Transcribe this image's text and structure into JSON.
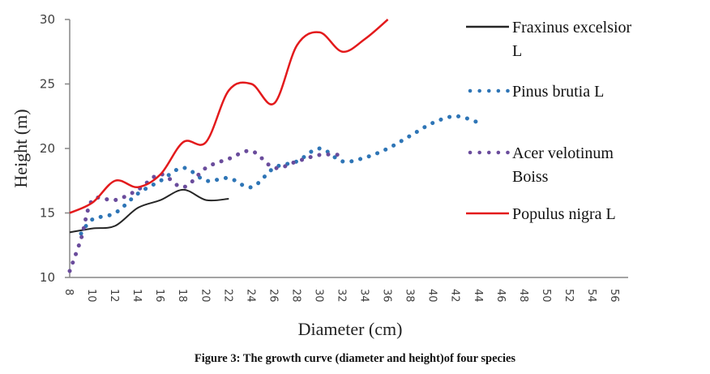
{
  "chart_data": {
    "type": "line",
    "title": "",
    "xlabel": "Diameter (cm)",
    "ylabel": "Height (m)",
    "xlim": [
      8,
      56
    ],
    "ylim": [
      10,
      30
    ],
    "x_ticks": [
      "8",
      "10",
      "12",
      "14",
      "16",
      "18",
      "20",
      "22",
      "24",
      "26",
      "28",
      "30",
      "32",
      "34",
      "36",
      "38",
      "40",
      "42",
      "44",
      "46",
      "48",
      "50",
      "52",
      "54",
      "56"
    ],
    "y_ticks": [
      "10",
      "15",
      "20",
      "25",
      "30"
    ],
    "grid": false,
    "legend_position": "right",
    "series": [
      {
        "name": "Fraxinus excelsior L",
        "legend_lines": [
          "Fraxinus excelsior",
          "L"
        ],
        "style": "solid",
        "color": "#262626",
        "points": [
          [
            8,
            13.5
          ],
          [
            10,
            13.8
          ],
          [
            12,
            14.0
          ],
          [
            14,
            15.4
          ],
          [
            16,
            16.0
          ],
          [
            18,
            16.8
          ],
          [
            20,
            16.0
          ],
          [
            22,
            16.1
          ]
        ]
      },
      {
        "name": "Pinus brutia L",
        "legend_lines": [
          "Pinus brutia L"
        ],
        "style": "dotted",
        "color": "#2e75b6",
        "points": [
          [
            9,
            13.4
          ],
          [
            10,
            14.5
          ],
          [
            12,
            15.0
          ],
          [
            14,
            16.5
          ],
          [
            16,
            17.5
          ],
          [
            18,
            18.5
          ],
          [
            20,
            17.5
          ],
          [
            22,
            17.7
          ],
          [
            24,
            17.0
          ],
          [
            26,
            18.5
          ],
          [
            28,
            19.0
          ],
          [
            30,
            20.0
          ],
          [
            32,
            19.0
          ],
          [
            34,
            19.3
          ],
          [
            36,
            20.0
          ],
          [
            38,
            21.0
          ],
          [
            40,
            22.0
          ],
          [
            42,
            22.5
          ],
          [
            44,
            22.0
          ]
        ]
      },
      {
        "name": "Acer velotinum Boiss",
        "legend_lines": [
          "Acer velotinum",
          "Boiss"
        ],
        "style": "dotted",
        "color": "#6a4c9c",
        "points": [
          [
            8,
            10.5
          ],
          [
            9,
            13.0
          ],
          [
            10,
            16.0
          ],
          [
            12,
            16.0
          ],
          [
            14,
            16.8
          ],
          [
            16,
            18.0
          ],
          [
            18,
            17.0
          ],
          [
            20,
            18.5
          ],
          [
            22,
            19.2
          ],
          [
            24,
            19.8
          ],
          [
            26,
            18.5
          ],
          [
            28,
            19.0
          ],
          [
            30,
            19.5
          ],
          [
            32,
            19.5
          ]
        ]
      },
      {
        "name": "Populus nigra L",
        "legend_lines": [
          "Populus nigra L"
        ],
        "style": "solid",
        "color": "#e31a1c",
        "points": [
          [
            8,
            15.0
          ],
          [
            10,
            15.8
          ],
          [
            12,
            17.5
          ],
          [
            14,
            17.0
          ],
          [
            16,
            18.0
          ],
          [
            18,
            20.5
          ],
          [
            20,
            20.5
          ],
          [
            22,
            24.5
          ],
          [
            24,
            25.0
          ],
          [
            26,
            23.5
          ],
          [
            28,
            28.0
          ],
          [
            30,
            29.0
          ],
          [
            32,
            27.5
          ],
          [
            34,
            28.5
          ],
          [
            36,
            30.0
          ]
        ]
      }
    ]
  },
  "caption": "Figure 3: The growth curve (diameter and height)of four species"
}
